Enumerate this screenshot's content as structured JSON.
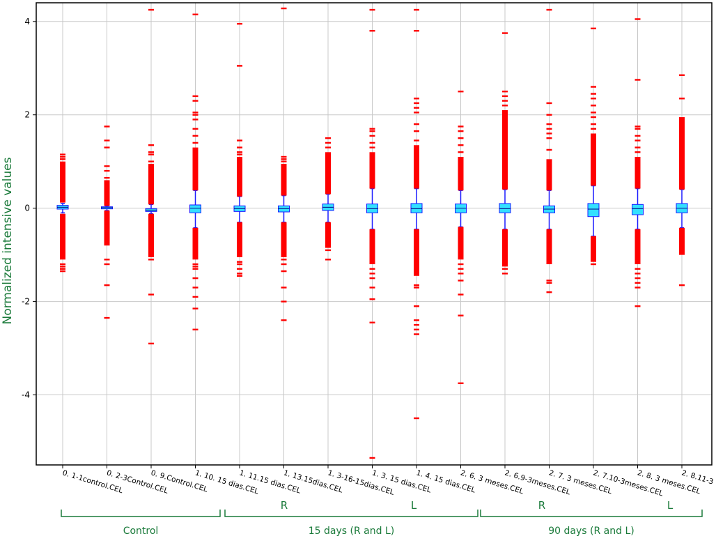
{
  "chart_data": {
    "type": "box",
    "ylabel": "Normalized intensive values",
    "ylim": [
      -5.5,
      4.4
    ],
    "yticks": [
      4,
      2,
      0,
      -2,
      -4
    ],
    "grid": true,
    "categories": [
      "0. 1-1control.CEL",
      "0. 2-3Control.CEL",
      "0. 9.Control.CEL",
      "1. 10. 15 dias.CEL",
      "1. 11.15 dias.CEL",
      "1. 13.15dias.CEL",
      "1. 3-16-15dias.CEL",
      "1. 3. 15 dias.CEL",
      "1. 4. 15 dias.CEL",
      "2. 6. 3 meses.CEL",
      "2. 6.9-3meses.CEL",
      "2. 7. 3 meses.CEL",
      "2. 7.10-3meses.CEL",
      "2. 8. 3 meses.CEL",
      "2. 8.11-3"
    ],
    "boxes": [
      {
        "q1": -0.02,
        "median": 0.02,
        "q3": 0.06,
        "whisker_low": -0.1,
        "whisker_high": 0.1,
        "dense_low": [
          -0.12,
          -1.1
        ],
        "dense_high": [
          0.12,
          1.0
        ],
        "outliers": [
          -1.2,
          -1.25,
          -1.3,
          -1.35,
          1.05,
          1.1,
          1.15
        ]
      },
      {
        "q1": -0.01,
        "median": 0.01,
        "q3": 0.03,
        "whisker_low": -0.05,
        "whisker_high": 0.05,
        "dense_low": [
          -0.05,
          -0.8
        ],
        "dense_high": [
          0.05,
          0.6
        ],
        "outliers": [
          -1.1,
          -1.2,
          -1.65,
          -2.35,
          0.65,
          0.8,
          0.9,
          1.3,
          1.45,
          1.75
        ]
      },
      {
        "q1": -0.07,
        "median": -0.04,
        "q3": -0.01,
        "whisker_low": -0.12,
        "whisker_high": 0.08,
        "dense_low": [
          -0.12,
          -1.05
        ],
        "dense_high": [
          0.08,
          0.95
        ],
        "outliers": [
          -1.1,
          -1.85,
          -2.9,
          1.0,
          1.15,
          1.2,
          1.35,
          4.25
        ]
      },
      {
        "q1": -0.1,
        "median": 0.0,
        "q3": 0.07,
        "whisker_low": -0.42,
        "whisker_high": 0.38,
        "dense_low": [
          -0.42,
          -1.1
        ],
        "dense_high": [
          0.38,
          1.3
        ],
        "outliers": [
          -1.2,
          -1.25,
          -1.3,
          -1.5,
          -1.7,
          -1.9,
          -2.15,
          -2.6,
          1.4,
          1.55,
          1.7,
          1.9,
          2.0,
          2.05,
          2.3,
          2.4,
          4.15
        ]
      },
      {
        "q1": -0.07,
        "median": -0.01,
        "q3": 0.05,
        "whisker_low": -0.3,
        "whisker_high": 0.25,
        "dense_low": [
          -0.3,
          -1.05
        ],
        "dense_high": [
          0.25,
          1.1
        ],
        "outliers": [
          -1.15,
          -1.2,
          -1.3,
          -1.4,
          -1.45,
          1.15,
          1.2,
          1.3,
          1.45,
          3.05,
          3.95
        ]
      },
      {
        "q1": -0.08,
        "median": -0.01,
        "q3": 0.05,
        "whisker_low": -0.3,
        "whisker_high": 0.27,
        "dense_low": [
          -0.3,
          -1.05
        ],
        "dense_high": [
          0.27,
          0.95
        ],
        "outliers": [
          -1.1,
          -1.2,
          -1.35,
          -1.7,
          -2.0,
          -2.4,
          1.0,
          1.05,
          1.1,
          4.28
        ]
      },
      {
        "q1": -0.05,
        "median": 0.02,
        "q3": 0.09,
        "whisker_low": -0.3,
        "whisker_high": 0.3,
        "dense_low": [
          -0.3,
          -0.85
        ],
        "dense_high": [
          0.3,
          1.2
        ],
        "outliers": [
          -0.9,
          -1.1,
          1.3,
          1.4,
          1.5
        ]
      },
      {
        "q1": -0.1,
        "median": -0.01,
        "q3": 0.09,
        "whisker_low": -0.45,
        "whisker_high": 0.42,
        "dense_low": [
          -0.45,
          -1.2
        ],
        "dense_high": [
          0.42,
          1.2
        ],
        "outliers": [
          -1.3,
          -1.4,
          -1.5,
          -1.7,
          -1.95,
          -2.45,
          -5.35,
          1.3,
          1.4,
          1.55,
          1.65,
          1.7,
          3.8,
          4.25
        ]
      },
      {
        "q1": -0.1,
        "median": -0.01,
        "q3": 0.1,
        "whisker_low": -0.45,
        "whisker_high": 0.42,
        "dense_low": [
          -0.45,
          -1.45
        ],
        "dense_high": [
          0.42,
          1.35
        ],
        "outliers": [
          -1.65,
          -1.7,
          -2.1,
          -2.4,
          -2.5,
          -2.6,
          -2.7,
          -4.5,
          1.45,
          1.65,
          1.8,
          2.05,
          2.15,
          2.25,
          2.35,
          3.8,
          4.25
        ]
      },
      {
        "q1": -0.1,
        "median": 0.0,
        "q3": 0.09,
        "whisker_low": -0.4,
        "whisker_high": 0.38,
        "dense_low": [
          -0.4,
          -1.1
        ],
        "dense_high": [
          0.38,
          1.1
        ],
        "outliers": [
          -1.2,
          -1.3,
          -1.4,
          -1.55,
          -1.85,
          -2.3,
          -3.75,
          1.2,
          1.35,
          1.5,
          1.65,
          1.75,
          2.5
        ]
      },
      {
        "q1": -0.1,
        "median": -0.01,
        "q3": 0.1,
        "whisker_low": -0.45,
        "whisker_high": 0.4,
        "dense_low": [
          -0.45,
          -1.25
        ],
        "dense_high": [
          0.4,
          2.1
        ],
        "outliers": [
          -1.3,
          -1.4,
          2.2,
          2.3,
          2.4,
          2.5,
          3.75
        ]
      },
      {
        "q1": -0.1,
        "median": -0.02,
        "q3": 0.05,
        "whisker_low": -0.45,
        "whisker_high": 0.38,
        "dense_low": [
          -0.45,
          -1.2
        ],
        "dense_high": [
          0.38,
          1.05
        ],
        "outliers": [
          -1.55,
          -1.6,
          -1.8,
          1.25,
          1.5,
          1.6,
          1.7,
          1.8,
          2.0,
          2.25,
          4.25
        ]
      },
      {
        "q1": -0.18,
        "median": -0.02,
        "q3": 0.1,
        "whisker_low": -0.6,
        "whisker_high": 0.48,
        "dense_low": [
          -0.6,
          -1.15
        ],
        "dense_high": [
          0.48,
          1.6
        ],
        "outliers": [
          -1.2,
          1.7,
          1.8,
          1.95,
          2.05,
          2.2,
          2.35,
          2.45,
          2.6,
          3.85
        ]
      },
      {
        "q1": -0.14,
        "median": -0.01,
        "q3": 0.08,
        "whisker_low": -0.45,
        "whisker_high": 0.42,
        "dense_low": [
          -0.45,
          -1.2
        ],
        "dense_high": [
          0.42,
          1.1
        ],
        "outliers": [
          -1.3,
          -1.4,
          -1.5,
          -1.6,
          -1.7,
          -2.1,
          1.2,
          1.3,
          1.45,
          1.55,
          1.7,
          1.75,
          2.75,
          4.05
        ]
      },
      {
        "q1": -0.1,
        "median": 0.0,
        "q3": 0.1,
        "whisker_low": -0.42,
        "whisker_high": 0.4,
        "dense_low": [
          -0.42,
          -1.0
        ],
        "dense_high": [
          0.4,
          1.95
        ],
        "outliers": [
          -1.65,
          2.35,
          2.85
        ]
      }
    ],
    "group_brackets": [
      {
        "label": "Control",
        "start": 0,
        "end": 3
      },
      {
        "label": "15 days (R and L)",
        "start": 4,
        "end": 9
      },
      {
        "label": "90 days (R and L)",
        "start": 10,
        "end": 14
      }
    ],
    "side_labels": [
      {
        "label": "R",
        "near": 5
      },
      {
        "label": "L",
        "near": 8
      },
      {
        "label": "R",
        "near": 11
      },
      {
        "label": "L",
        "near": 14
      }
    ],
    "colors": {
      "box_fill": "#33e0ff",
      "box_edge": "#1a1aff",
      "whisker": "#1a1aff",
      "outlier": "#ff0000",
      "median": "#000080",
      "annotation": "#1a7a3a",
      "grid": "#c8c8c8",
      "axis": "#000000"
    }
  }
}
